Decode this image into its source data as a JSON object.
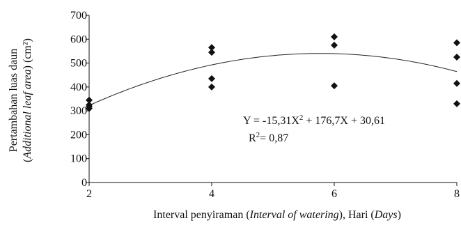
{
  "chart_data": {
    "type": "scatter",
    "title": "",
    "xlabel_parts": [
      {
        "text": "Interval penyiraman (",
        "italic": false
      },
      {
        "text": "Interval of watering",
        "italic": true
      },
      {
        "text": "), Hari (",
        "italic": false
      },
      {
        "text": "Days",
        "italic": true
      },
      {
        "text": ")",
        "italic": false
      }
    ],
    "ylabel_line1": "Pertambahan luas daun",
    "ylabel_line2_parts": [
      {
        "text": "(",
        "italic": false
      },
      {
        "text": "Additional leaf area",
        "italic": true
      },
      {
        "text": ") (cm²)",
        "italic": false
      }
    ],
    "x_ticks": [
      2,
      4,
      6,
      8
    ],
    "y_ticks": [
      0,
      100,
      200,
      300,
      400,
      500,
      600,
      700
    ],
    "xlim": [
      2,
      8
    ],
    "ylim": [
      0,
      700
    ],
    "points": [
      {
        "x": 2,
        "y": 345
      },
      {
        "x": 2,
        "y": 325
      },
      {
        "x": 2,
        "y": 318
      },
      {
        "x": 2,
        "y": 310
      },
      {
        "x": 4,
        "y": 565
      },
      {
        "x": 4,
        "y": 545
      },
      {
        "x": 4,
        "y": 435
      },
      {
        "x": 4,
        "y": 400
      },
      {
        "x": 6,
        "y": 610
      },
      {
        "x": 6,
        "y": 575
      },
      {
        "x": 6,
        "y": 405
      },
      {
        "x": 8,
        "y": 585
      },
      {
        "x": 8,
        "y": 525
      },
      {
        "x": 8,
        "y": 415
      },
      {
        "x": 8,
        "y": 330
      }
    ],
    "trendline": {
      "type": "polynomial",
      "a": -15.31,
      "b": 176.7,
      "c": 30.61,
      "x_range": [
        2,
        8
      ]
    },
    "equation_parts": [
      {
        "text": "Y = -15,31X",
        "sup": false
      },
      {
        "text": "2",
        "sup": true
      },
      {
        "text": " + 176,7X + 30,61",
        "sup": false
      }
    ],
    "r2_parts": [
      {
        "text": "R",
        "sup": false
      },
      {
        "text": "2",
        "sup": true
      },
      {
        "text": "= 0,87",
        "sup": false
      }
    ],
    "grid": false,
    "legend": "none"
  }
}
